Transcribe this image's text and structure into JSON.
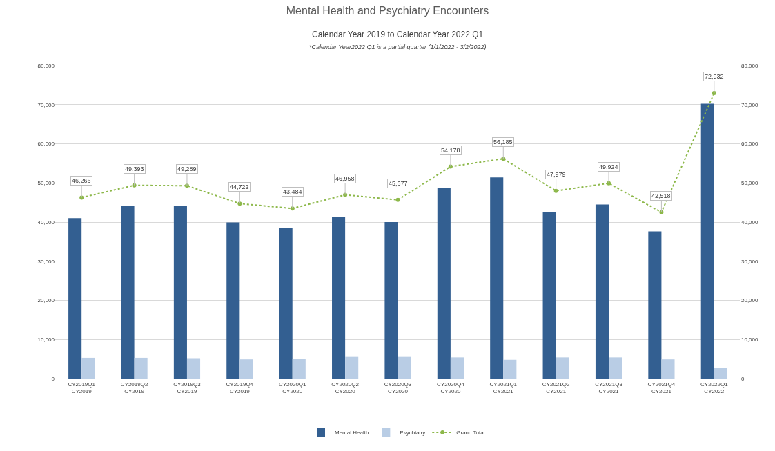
{
  "chart_data": {
    "type": "bar",
    "title": "Mental Health and Psychiatry Encounters",
    "subtitle": "Calendar Year 2019 to Calendar Year 2022 Q1",
    "annotations": [
      "*Calendar Year2022 Q1 is a partial quarter (1/1/2022 - 3/2/2022)"
    ],
    "categories": [
      "CY2019Q1\nCY2019",
      "CY2019Q2\nCY2019",
      "CY2019Q3\nCY2019",
      "CY2019Q4\nCY2019",
      "CY2020Q1\nCY2020",
      "CY2020Q2\nCY2020",
      "CY2020Q3\nCY2020",
      "CY2020Q4\nCY2020",
      "CY2021Q1\nCY2021",
      "CY2021Q2\nCY2021",
      "CY2021Q3\nCY2021",
      "CY2021Q4\nCY2021",
      "CY2022Q1\nCY2022"
    ],
    "series": [
      {
        "name": "Mental Health",
        "color": "#335f91",
        "values": [
          41000,
          44100,
          44100,
          39900,
          38400,
          41300,
          40000,
          48800,
          51400,
          42600,
          44500,
          37600,
          70200
        ]
      },
      {
        "name": "Psychiatry",
        "color": "#b9cde5",
        "values": [
          5300,
          5300,
          5200,
          4900,
          5100,
          5700,
          5700,
          5400,
          4800,
          5400,
          5400,
          4900,
          2700
        ]
      },
      {
        "name": "Grand Total",
        "type": "line",
        "axis": "y2",
        "color": "#8db84a",
        "marker": "circle",
        "line_style": "dotted",
        "values": [
          46266,
          49393,
          49289,
          44722,
          43484,
          46958,
          45677,
          54178,
          56185,
          47979,
          49924,
          42518,
          72932
        ],
        "value_labels": [
          "46,266",
          "49,393",
          "49,289",
          "44,722",
          "43,484",
          "46,958",
          "45,677",
          "54,178",
          "56,185",
          "47,979",
          "49,924",
          "42,518",
          "72,932"
        ]
      }
    ],
    "ylim": [
      0,
      80000
    ],
    "yticks": [
      0,
      {
        "value": 10000,
        "label": "10,000"
      },
      {
        "value": 20000,
        "label": "20,000"
      },
      {
        "value": 30000,
        "label": "30,000"
      },
      {
        "value": 40000,
        "label": "40,000"
      },
      {
        "value": 50000,
        "label": "50,000"
      },
      {
        "value": 60000,
        "label": "60,000"
      },
      {
        "value": 70000,
        "label": "70,000"
      },
      {
        "value": 80000,
        "label": "80,000"
      }
    ],
    "y2lim": [
      0,
      80000
    ],
    "y2ticks": [
      0,
      {
        "value": 10000,
        "label": "10,000"
      },
      {
        "value": 20000,
        "label": "20,000"
      },
      {
        "value": 30000,
        "label": "30,000"
      },
      {
        "value": 40000,
        "label": "40,000"
      },
      {
        "value": 50000,
        "label": "50,000"
      },
      {
        "value": 60000,
        "label": "60,000"
      },
      {
        "value": 70000,
        "label": "70,000"
      },
      {
        "value": 80000,
        "label": "80,000"
      }
    ],
    "grid": "y",
    "legend": "bottom"
  }
}
